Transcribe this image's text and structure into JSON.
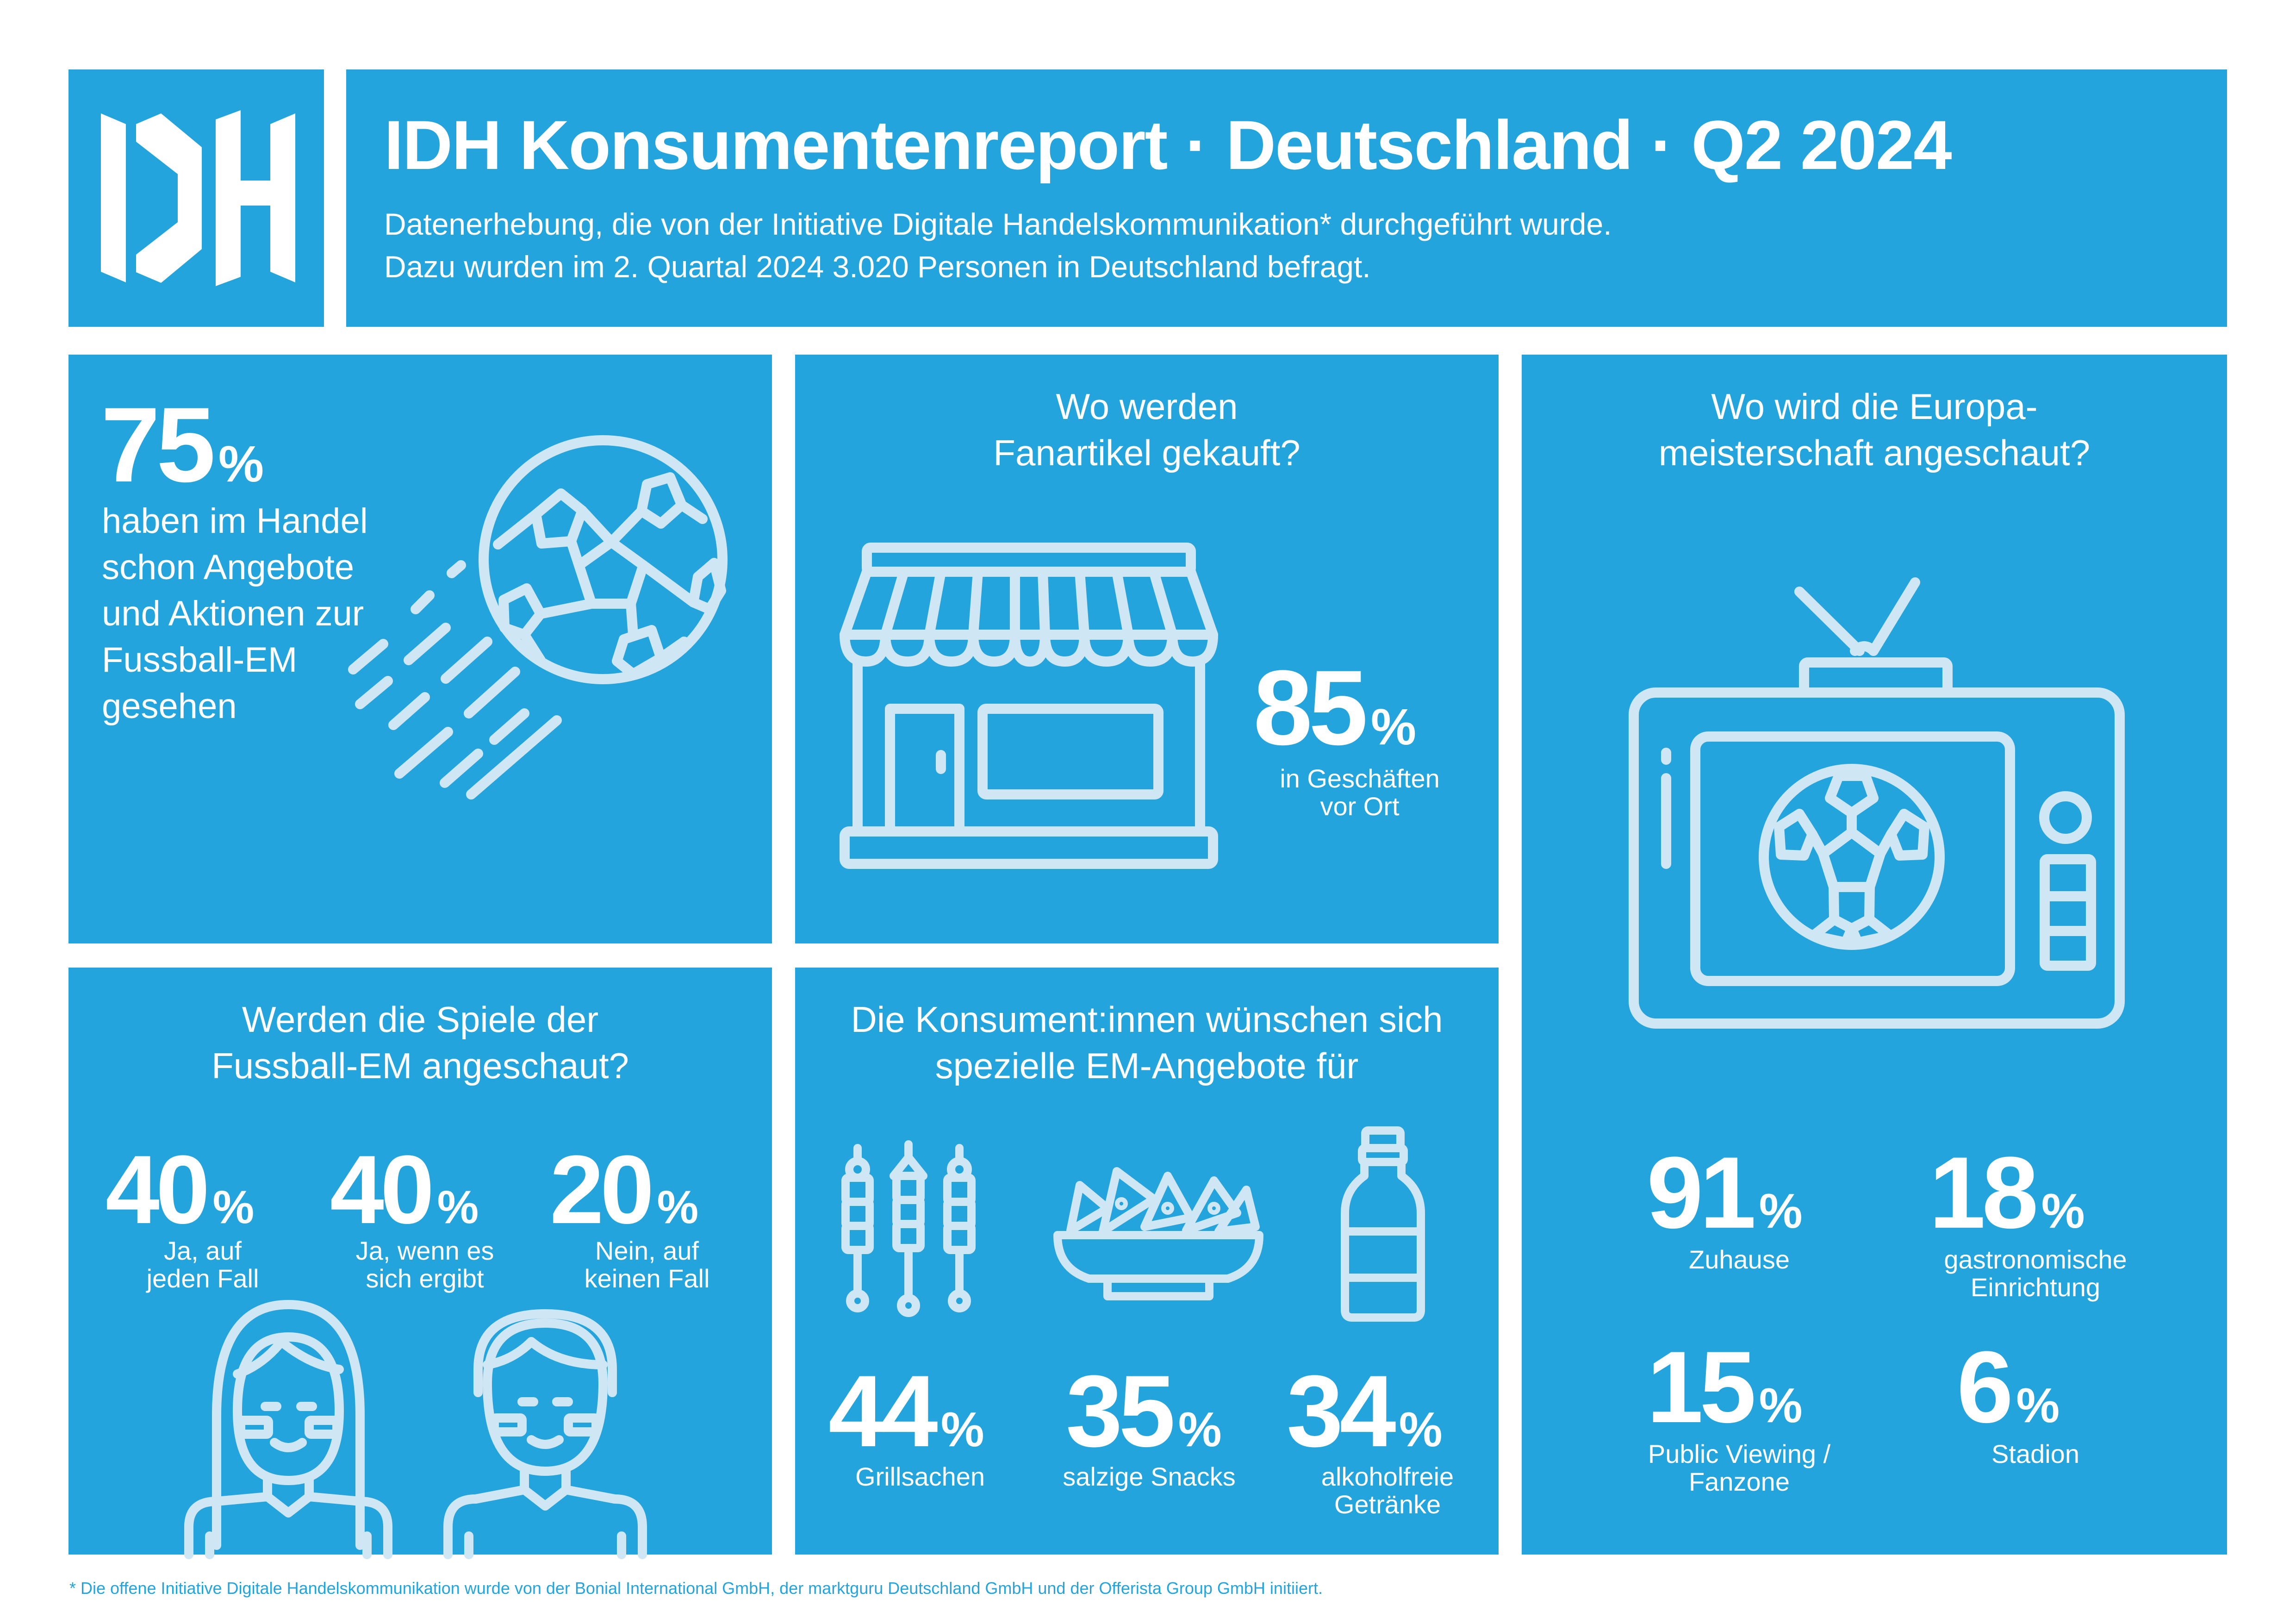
{
  "header": {
    "logo_text": "IDH",
    "title": "IDH Konsumentenreport · Deutschland · Q2 2024",
    "subtitle_line1": "Datenerhebung, die von der Initiative Digitale Handelskommunikation* durchgeführt wurde.",
    "subtitle_line2": "Dazu wurden im 2. Quartal 2024 3.020 Personen in Deutschland befragt."
  },
  "panel_offers": {
    "value": "75",
    "unit": "%",
    "lines": [
      "haben im Handel",
      "schon Angebote",
      "und Aktionen zur",
      "Fussball-EM",
      "gesehen"
    ],
    "icon": "flying-soccer-ball-icon"
  },
  "panel_fan": {
    "question_line1": "Wo werden",
    "question_line2": "Fanartikel gekauft?",
    "value": "85",
    "unit": "%",
    "label_line1": "in Geschäften",
    "label_line2": "vor Ort",
    "icon": "store-icon"
  },
  "panel_where": {
    "question_line1": "Wo wird die Europa-",
    "question_line2": "meisterschaft angeschaut?",
    "icon": "tv-soccer-icon",
    "stats": [
      {
        "value": "91",
        "unit": "%",
        "label_line1": "Zuhause",
        "label_line2": ""
      },
      {
        "value": "18",
        "unit": "%",
        "label_line1": "gastronomische",
        "label_line2": "Einrichtung"
      },
      {
        "value": "15",
        "unit": "%",
        "label_line1": "Public Viewing /",
        "label_line2": "Fanzone"
      },
      {
        "value": "6",
        "unit": "%",
        "label_line1": "Stadion",
        "label_line2": ""
      }
    ]
  },
  "panel_watch": {
    "question_line1": "Werden die Spiele der",
    "question_line2": "Fussball-EM angeschaut?",
    "icon": "fans-icon",
    "stats": [
      {
        "value": "40",
        "unit": "%",
        "label_line1": "Ja, auf",
        "label_line2": "jeden Fall"
      },
      {
        "value": "40",
        "unit": "%",
        "label_line1": "Ja, wenn es",
        "label_line2": "sich ergibt"
      },
      {
        "value": "20",
        "unit": "%",
        "label_line1": "Nein, auf",
        "label_line2": "keinen Fall"
      }
    ]
  },
  "panel_wishes": {
    "question_line1": "Die Konsument:innen wünschen sich",
    "question_line2": "spezielle EM-Angebote für",
    "stats": [
      {
        "value": "44",
        "unit": "%",
        "label_line1": "Grillsachen",
        "label_line2": "",
        "icon": "skewers-icon"
      },
      {
        "value": "35",
        "unit": "%",
        "label_line1": "salzige Snacks",
        "label_line2": "",
        "icon": "snack-bowl-icon"
      },
      {
        "value": "34",
        "unit": "%",
        "label_line1": "alkoholfreie",
        "label_line2": "Getränke",
        "icon": "bottle-icon"
      }
    ]
  },
  "footnote": "* Die offene Initiative Digitale Handelskommunikation wurde von der Bonial International GmbH, der marktguru Deutschland GmbH und der Offerista Group GmbH initiiert.",
  "colors": {
    "accent": "#23a4dc",
    "line": "#cfe6f5",
    "background": "#ffffff"
  }
}
